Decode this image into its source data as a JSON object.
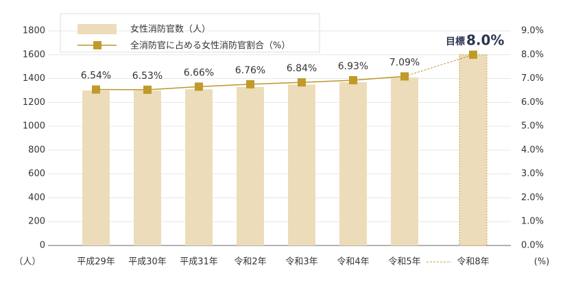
{
  "chart_data": {
    "type": "bar_line",
    "categories": [
      "平成29年",
      "平成30年",
      "平成31年",
      "令和2年",
      "令和3年",
      "令和4年",
      "令和5年",
      "令和8年"
    ],
    "projected": [
      false,
      false,
      false,
      false,
      false,
      false,
      false,
      true
    ],
    "series": [
      {
        "name": "女性消防官数（人）",
        "type": "bar",
        "color": "#eddcb9",
        "values": [
          1300,
          1300,
          1310,
          1330,
          1350,
          1370,
          1410,
          1600
        ]
      },
      {
        "name": "全消防官に占める女性消防官割合（%）",
        "type": "line",
        "axis": "y2",
        "color": "#b8962e",
        "values": [
          6.54,
          6.53,
          6.66,
          6.76,
          6.84,
          6.93,
          7.09,
          8.0
        ],
        "value_labels": [
          "6.54%",
          "6.53%",
          "6.66%",
          "6.76%",
          "6.84%",
          "6.93%",
          "7.09%",
          "8.0%"
        ]
      }
    ],
    "annotation": "目標",
    "ylabel": "（人）",
    "y2label": "(%)",
    "ylim": [
      0,
      1800
    ],
    "yticks": [
      0,
      200,
      400,
      600,
      800,
      1000,
      1200,
      1400,
      1600,
      1800
    ],
    "y2lim": [
      0,
      9
    ],
    "y2ticks": [
      {
        "value": 0,
        "label": "0.0%"
      },
      {
        "value": 1,
        "label": "1.0%"
      },
      {
        "value": 2,
        "label": "2.0%"
      },
      {
        "value": 3,
        "label": "3.0%"
      },
      {
        "value": 4,
        "label": "4.0%"
      },
      {
        "value": 5,
        "label": "5.0%"
      },
      {
        "value": 6,
        "label": "6.0%"
      },
      {
        "value": 7,
        "label": "7.0%"
      },
      {
        "value": 8,
        "label": "8.0%"
      },
      {
        "value": 9,
        "label": "9.0%"
      }
    ],
    "grid": true
  }
}
